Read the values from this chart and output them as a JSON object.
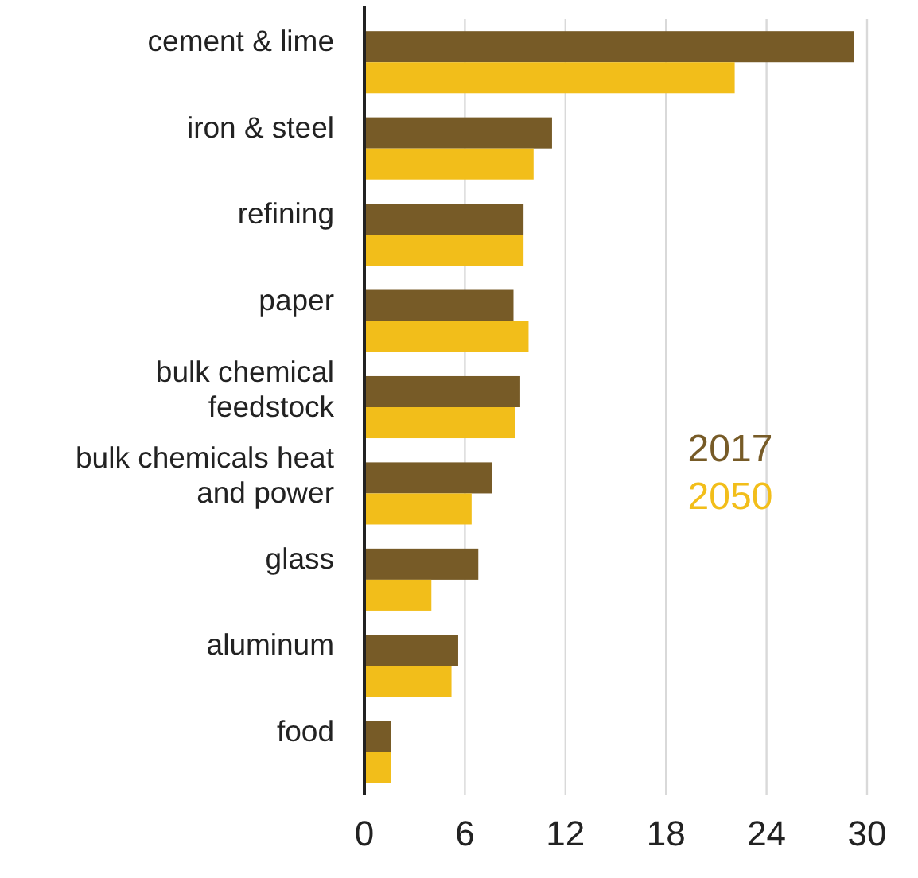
{
  "chart_data": {
    "type": "bar",
    "orientation": "horizontal",
    "categories": [
      "cement & lime",
      "iron & steel",
      "refining",
      "paper",
      "bulk chemical feedstock",
      "bulk chemicals heat and power",
      "glass",
      "aluminum",
      "food"
    ],
    "series": [
      {
        "name": "2017",
        "color": "#775b27",
        "values": [
          29.2,
          11.2,
          9.5,
          8.9,
          9.3,
          7.6,
          6.8,
          5.6,
          1.6
        ]
      },
      {
        "name": "2050",
        "color": "#f2be1a",
        "values": [
          22.1,
          10.1,
          9.5,
          9.8,
          9.0,
          6.4,
          4.0,
          5.2,
          1.6
        ]
      }
    ],
    "xlim": [
      0,
      30
    ],
    "xticks": [
      0,
      6,
      12,
      18,
      24,
      30
    ],
    "grid": "x",
    "legend": "right"
  }
}
